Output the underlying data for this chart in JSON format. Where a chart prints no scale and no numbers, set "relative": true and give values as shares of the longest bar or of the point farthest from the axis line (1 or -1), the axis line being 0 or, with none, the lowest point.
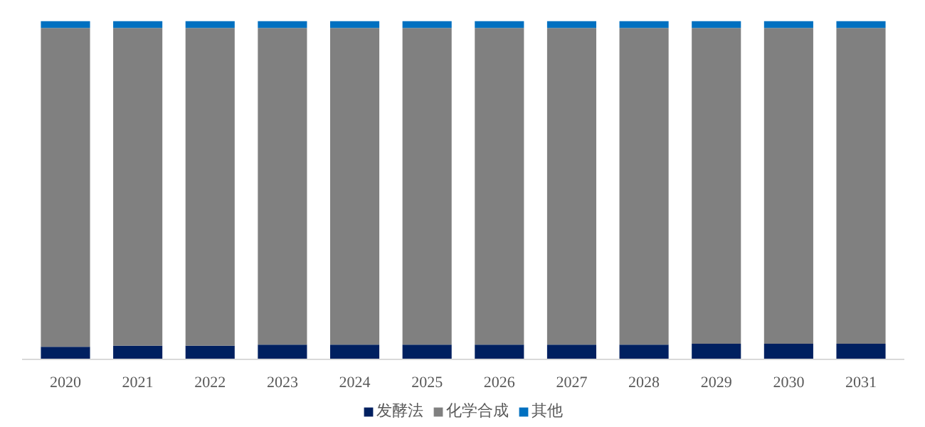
{
  "chart_data": {
    "type": "bar",
    "stacked": true,
    "relative": true,
    "legend": "bottom",
    "grid": false,
    "categories": [
      "2020",
      "2021",
      "2022",
      "2023",
      "2024",
      "2025",
      "2026",
      "2027",
      "2028",
      "2029",
      "2030",
      "2031"
    ],
    "series": [
      {
        "name": "发酵法",
        "color": "#002060",
        "values": [
          0.039,
          0.042,
          0.042,
          0.045,
          0.045,
          0.045,
          0.045,
          0.045,
          0.045,
          0.048,
          0.048,
          0.048
        ]
      },
      {
        "name": "化学合成",
        "color": "#808080",
        "values": [
          0.941,
          0.938,
          0.938,
          0.935,
          0.935,
          0.935,
          0.935,
          0.935,
          0.935,
          0.932,
          0.932,
          0.932
        ]
      },
      {
        "name": "其他",
        "color": "#0070c0",
        "values": [
          0.02,
          0.02,
          0.02,
          0.02,
          0.02,
          0.02,
          0.02,
          0.02,
          0.02,
          0.02,
          0.02,
          0.02
        ]
      }
    ]
  }
}
